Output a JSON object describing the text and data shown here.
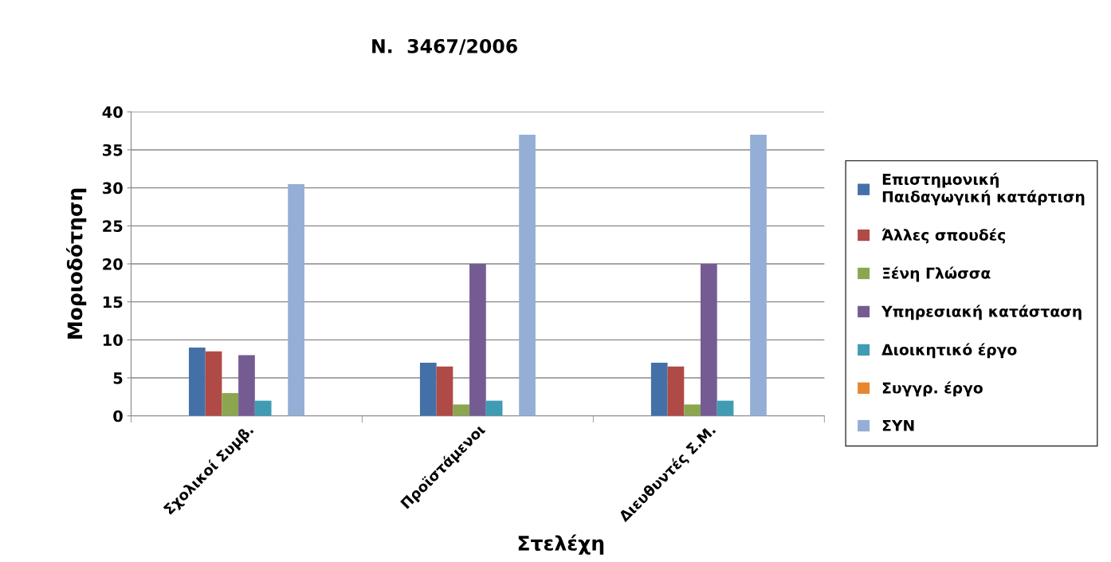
{
  "chart_data": {
    "type": "bar",
    "title": "N.  3467/2006",
    "xlabel": "Στελέχη",
    "ylabel": "Μοριοδότηση",
    "categories": [
      "Σχολικοί Συμβ.",
      "Προϊστάμενοι",
      "Διευθυντές Σ.Μ."
    ],
    "series": [
      {
        "name": "Επιστημονική\nΠαιδαγωγική κατάρτιση",
        "color": "#4470a8",
        "values": [
          9,
          7,
          7
        ]
      },
      {
        "name": "Άλλες σπουδές",
        "color": "#b04a46",
        "values": [
          8.5,
          6.5,
          6.5
        ]
      },
      {
        "name": "Ξένη Γλώσσα",
        "color": "#8ba64f",
        "values": [
          3,
          1.5,
          1.5
        ]
      },
      {
        "name": "Υπηρεσιακή κατάσταση",
        "color": "#745c93",
        "values": [
          8,
          20,
          20
        ]
      },
      {
        "name": "Διοικητικό έργο",
        "color": "#3f9cb3",
        "values": [
          2,
          2,
          2
        ]
      },
      {
        "name": "Συγγρ. έργο",
        "color": "#e8862e",
        "values": [
          null,
          null,
          null
        ]
      },
      {
        "name": "ΣΥΝ",
        "color": "#94aed6",
        "values": [
          30.5,
          37,
          37
        ]
      }
    ],
    "ylim": [
      0,
      40
    ],
    "yticks": [
      0,
      5,
      10,
      15,
      20,
      25,
      30,
      35,
      40
    ],
    "grid": "y",
    "legend": "right"
  }
}
